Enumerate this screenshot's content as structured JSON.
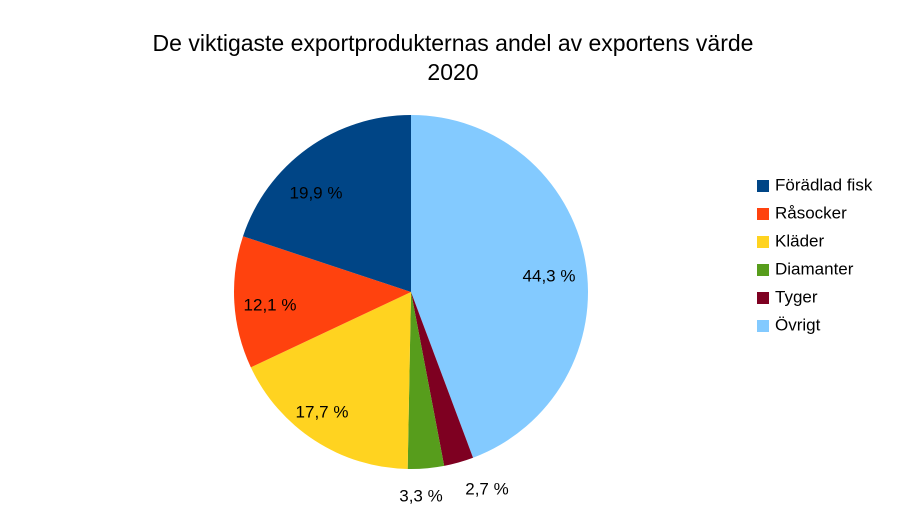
{
  "chart_data": {
    "type": "pie",
    "title": "De viktigaste exportprodukternas andel av exportens värde",
    "subtitle": "2020",
    "legend_position": "right",
    "slices": [
      {
        "name": "Förädlad fisk",
        "value": 19.9,
        "label": "19,9 %",
        "color": "#004586"
      },
      {
        "name": "Råsocker",
        "value": 12.1,
        "label": "12,1 %",
        "color": "#ff420e"
      },
      {
        "name": "Kläder",
        "value": 17.7,
        "label": "17,7 %",
        "color": "#ffd320"
      },
      {
        "name": "Diamanter",
        "value": 3.3,
        "label": "3,3 %",
        "color": "#579d1c"
      },
      {
        "name": "Tyger",
        "value": 2.7,
        "label": "2,7 %",
        "color": "#7e0021"
      },
      {
        "name": "Övrigt",
        "value": 44.3,
        "label": "44,3 %",
        "color": "#83caff"
      }
    ]
  }
}
